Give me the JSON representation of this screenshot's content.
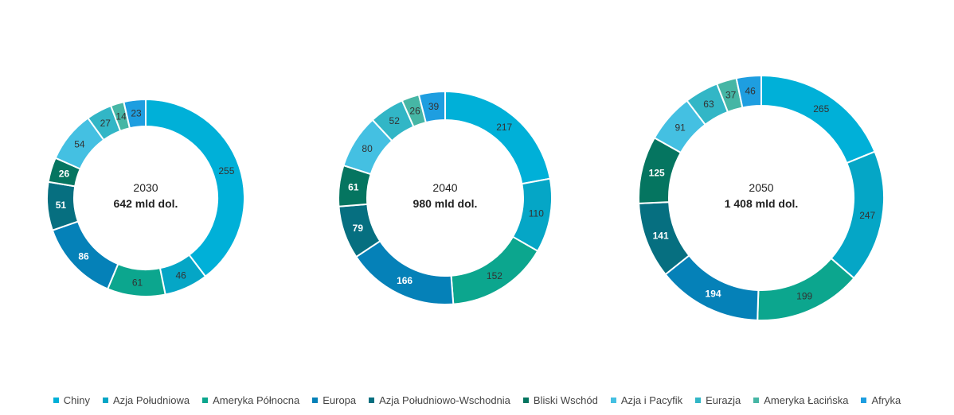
{
  "chart_data": {
    "type": "pie",
    "subtype": "donut",
    "categories": [
      "Chiny",
      "Azja Południowa",
      "Ameryka Północna",
      "Europa",
      "Azja Południowo-Wschodnia",
      "Bliski Wschód",
      "Azja i Pacyfik",
      "Eurazja",
      "Ameryka Łacińska",
      "Afryka"
    ],
    "colors": [
      "#00b0d8",
      "#05a6c6",
      "#0ca68e",
      "#0581b8",
      "#066f80",
      "#057560",
      "#44c0e2",
      "#32b6c6",
      "#46b6a5",
      "#1e9ee0"
    ],
    "label_colors": [
      "#333333",
      "#333333",
      "#333333",
      "#ffffff",
      "#ffffff",
      "#ffffff",
      "#333333",
      "#333333",
      "#333333",
      "#333333"
    ],
    "legend_position": "bottom",
    "charts": [
      {
        "year": "2030",
        "total": "642 mld dol.",
        "values": [
          255,
          46,
          61,
          86,
          51,
          26,
          54,
          27,
          14,
          23
        ]
      },
      {
        "year": "2040",
        "total": "980 mld dol.",
        "values": [
          217,
          110,
          152,
          166,
          79,
          61,
          80,
          52,
          26,
          39
        ]
      },
      {
        "year": "2050",
        "total": "1 408 mld dol.",
        "values": [
          265,
          247,
          199,
          194,
          141,
          125,
          91,
          63,
          37,
          46
        ]
      }
    ]
  }
}
